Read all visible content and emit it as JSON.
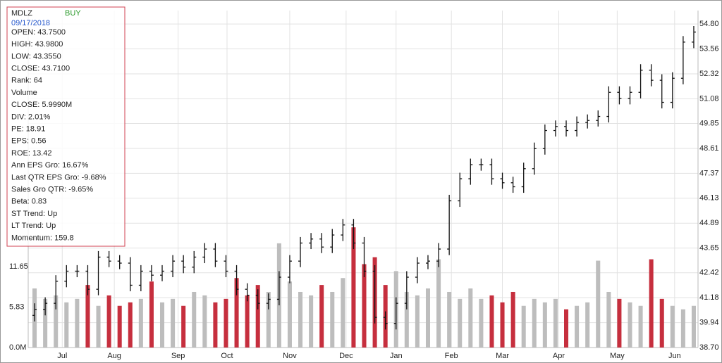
{
  "chart_data": {
    "type": "ohlc",
    "info": {
      "symbol": "MDLZ",
      "signal": "BUY",
      "date": "09/17/2018",
      "lines": [
        "OPEN: 43.7500",
        "HIGH: 43.9800",
        "LOW: 43.3550",
        "CLOSE: 43.7100",
        "Rank: 64",
        "Volume",
        "CLOSE: 5.9990M",
        "DIV: 2.01%",
        "PE: 18.91",
        "EPS: 0.56",
        "ROE: 13.42",
        "Ann EPS Gro: 16.67%",
        "Last QTR EPS Gro: -9.68%",
        "Sales Gro QTR: -9.65%",
        "Beta: 0.83",
        "ST Trend: Up",
        "LT Trend: Up",
        "Momentum: 159.8"
      ]
    },
    "x": [
      0,
      1,
      2,
      3,
      4,
      5,
      6,
      7,
      8,
      9,
      10,
      11,
      12,
      13,
      14,
      15,
      16,
      17,
      18,
      19,
      20,
      21,
      22,
      23,
      24,
      25,
      26,
      27,
      28,
      29,
      30,
      31,
      32,
      33,
      34,
      35,
      36,
      37,
      38,
      39,
      40,
      41,
      42,
      43,
      44,
      45,
      46,
      47,
      48,
      49,
      50,
      51,
      52,
      53,
      54,
      55,
      56,
      57,
      58,
      59,
      60,
      61,
      62
    ],
    "xlim": [
      -0.6,
      62.4
    ],
    "xticks": [
      {
        "value": 2.6,
        "label": "Jul"
      },
      {
        "value": 7.5,
        "label": "Aug"
      },
      {
        "value": 13.5,
        "label": "Sep"
      },
      {
        "value": 18.1,
        "label": "Oct"
      },
      {
        "value": 24.0,
        "label": "Nov"
      },
      {
        "value": 29.3,
        "label": "Dec"
      },
      {
        "value": 34.0,
        "label": "Jan"
      },
      {
        "value": 39.2,
        "label": "Feb"
      },
      {
        "value": 44.0,
        "label": "Mar"
      },
      {
        "value": 49.3,
        "label": "Apr"
      },
      {
        "value": 54.8,
        "label": "May"
      },
      {
        "value": 60.2,
        "label": "Jun"
      }
    ],
    "open": [
      40.3,
      40.6,
      40.9,
      42.0,
      42.5,
      42.5,
      41.6,
      43.2,
      43.0,
      42.9,
      41.8,
      42.5,
      42.3,
      42.5,
      43.0,
      42.7,
      43.2,
      43.6,
      43.0,
      42.5,
      41.6,
      41.3,
      40.9,
      41.1,
      42.2,
      43.0,
      43.9,
      44.1,
      43.7,
      44.3,
      44.8,
      43.9,
      42.5,
      40.2,
      39.9,
      40.9,
      42.2,
      42.9,
      43.0,
      43.6,
      46.0,
      47.1,
      47.8,
      47.8,
      47.1,
      46.9,
      46.7,
      47.6,
      48.6,
      49.5,
      49.7,
      49.5,
      49.9,
      50.0,
      50.2,
      51.4,
      51.1,
      51.4,
      52.5,
      52.0,
      50.9,
      52.1,
      53.9
    ],
    "high": [
      40.9,
      41.2,
      42.3,
      42.8,
      42.8,
      42.8,
      43.5,
      43.5,
      43.3,
      43.2,
      42.8,
      42.8,
      42.8,
      43.3,
      43.3,
      43.5,
      43.9,
      43.9,
      43.3,
      42.8,
      41.9,
      41.6,
      41.4,
      42.5,
      43.3,
      44.2,
      44.4,
      44.4,
      44.6,
      45.1,
      45.1,
      44.2,
      42.8,
      40.5,
      41.2,
      42.5,
      43.2,
      43.3,
      43.9,
      46.3,
      47.4,
      48.1,
      48.1,
      48.1,
      47.4,
      47.2,
      47.9,
      48.9,
      49.8,
      50.0,
      50.0,
      50.2,
      50.3,
      50.5,
      51.7,
      51.7,
      51.7,
      52.8,
      52.8,
      52.3,
      52.4,
      54.2,
      54.7
    ],
    "low": [
      40.0,
      40.3,
      40.6,
      41.7,
      42.2,
      41.3,
      41.3,
      42.7,
      42.6,
      41.5,
      41.5,
      42.0,
      42.0,
      42.2,
      42.4,
      42.4,
      42.9,
      42.7,
      42.2,
      41.3,
      41.0,
      40.6,
      40.6,
      40.8,
      41.9,
      42.7,
      43.6,
      43.4,
      43.4,
      44.0,
      43.6,
      42.2,
      39.9,
      39.6,
      39.6,
      40.6,
      41.9,
      42.6,
      42.7,
      43.3,
      45.7,
      46.8,
      47.5,
      46.8,
      46.6,
      46.4,
      46.4,
      47.3,
      48.3,
      49.2,
      49.2,
      49.2,
      49.6,
      49.7,
      49.9,
      50.8,
      50.8,
      51.1,
      51.7,
      50.6,
      50.6,
      51.8,
      53.6
    ],
    "close": [
      40.6,
      40.9,
      42.0,
      42.5,
      42.5,
      41.6,
      43.2,
      43.0,
      42.9,
      41.8,
      42.5,
      42.3,
      42.5,
      43.0,
      42.7,
      43.2,
      43.6,
      43.0,
      42.5,
      41.6,
      41.3,
      40.9,
      41.1,
      42.2,
      43.0,
      43.9,
      44.1,
      43.7,
      44.3,
      44.8,
      43.9,
      42.5,
      40.2,
      39.9,
      40.9,
      42.2,
      42.9,
      43.0,
      43.6,
      46.0,
      47.1,
      47.8,
      47.8,
      47.1,
      46.9,
      46.7,
      47.6,
      48.6,
      49.5,
      49.7,
      49.5,
      49.9,
      50.0,
      50.2,
      51.4,
      51.1,
      51.4,
      52.5,
      52.0,
      50.9,
      52.1,
      53.9,
      54.4
    ],
    "volume": [
      8.5,
      7.0,
      7.5,
      6.5,
      7.0,
      9.0,
      6.0,
      7.5,
      6.0,
      6.5,
      7.0,
      9.5,
      6.5,
      7.0,
      6.0,
      8.0,
      7.5,
      6.5,
      7.0,
      10.0,
      7.5,
      9.0,
      8.0,
      15.0,
      9.5,
      8.0,
      7.5,
      9.0,
      8.0,
      10.0,
      17.3,
      12.0,
      13.0,
      9.0,
      11.0,
      8.0,
      7.5,
      8.5,
      12.7,
      8.0,
      7.0,
      8.5,
      7.0,
      7.5,
      6.5,
      8.0,
      6.0,
      7.0,
      6.5,
      7.0,
      5.5,
      6.0,
      6.5,
      12.5,
      8.0,
      7.0,
      6.5,
      6.0,
      12.7,
      7.0,
      6.0,
      5.5,
      6.0
    ],
    "price_color": "#111111",
    "volume_up_color": "#bdbdbd",
    "volume_down_color": "#c62f3e",
    "ylim": [
      38.7,
      55.47
    ],
    "yticks": [
      {
        "value": 38.7,
        "label": "38.70"
      },
      39.94,
      41.18,
      42.42,
      43.65,
      44.89,
      46.13,
      47.37,
      48.61,
      49.85,
      51.08,
      52.32,
      53.56,
      {
        "value": 54.8,
        "label": "54.80"
      }
    ],
    "y2lim": [
      0,
      48.5
    ],
    "y2ticks": [
      {
        "value": 0,
        "label": "0.0M"
      },
      5.83,
      11.65
    ],
    "grid": true
  }
}
